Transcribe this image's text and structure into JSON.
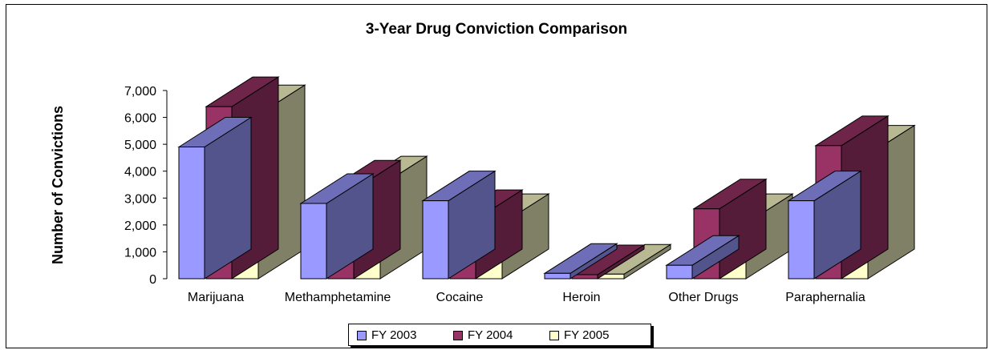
{
  "chart_data": {
    "type": "bar",
    "title": "3-Year Drug Conviction Comparison",
    "xlabel": "",
    "ylabel": "Number of Convictions",
    "ylim": [
      0,
      7000
    ],
    "yticks": [
      0,
      1000,
      2000,
      3000,
      4000,
      5000,
      6000,
      7000
    ],
    "ytick_labels": [
      "0",
      "1,000",
      "2,000",
      "3,000",
      "4,000",
      "5,000",
      "6,000",
      "7,000"
    ],
    "categories": [
      "Marijuana",
      "Methamphetamine",
      "Cocaine",
      "Heroin",
      "Other Drugs",
      "Paraphernalia"
    ],
    "series": [
      {
        "name": "FY 2003",
        "color": "#9999FF",
        "values": [
          4900,
          2800,
          2900,
          200,
          500,
          2900
        ]
      },
      {
        "name": "FY 2004",
        "color": "#993366",
        "values": [
          6400,
          3300,
          2200,
          150,
          2600,
          4950
        ]
      },
      {
        "name": "FY 2005",
        "color": "#FFFFCC",
        "values": [
          6100,
          3450,
          2050,
          170,
          2050,
          4600
        ]
      }
    ],
    "grid": false,
    "legend_position": "bottom",
    "style": "3d-clustered-column"
  }
}
